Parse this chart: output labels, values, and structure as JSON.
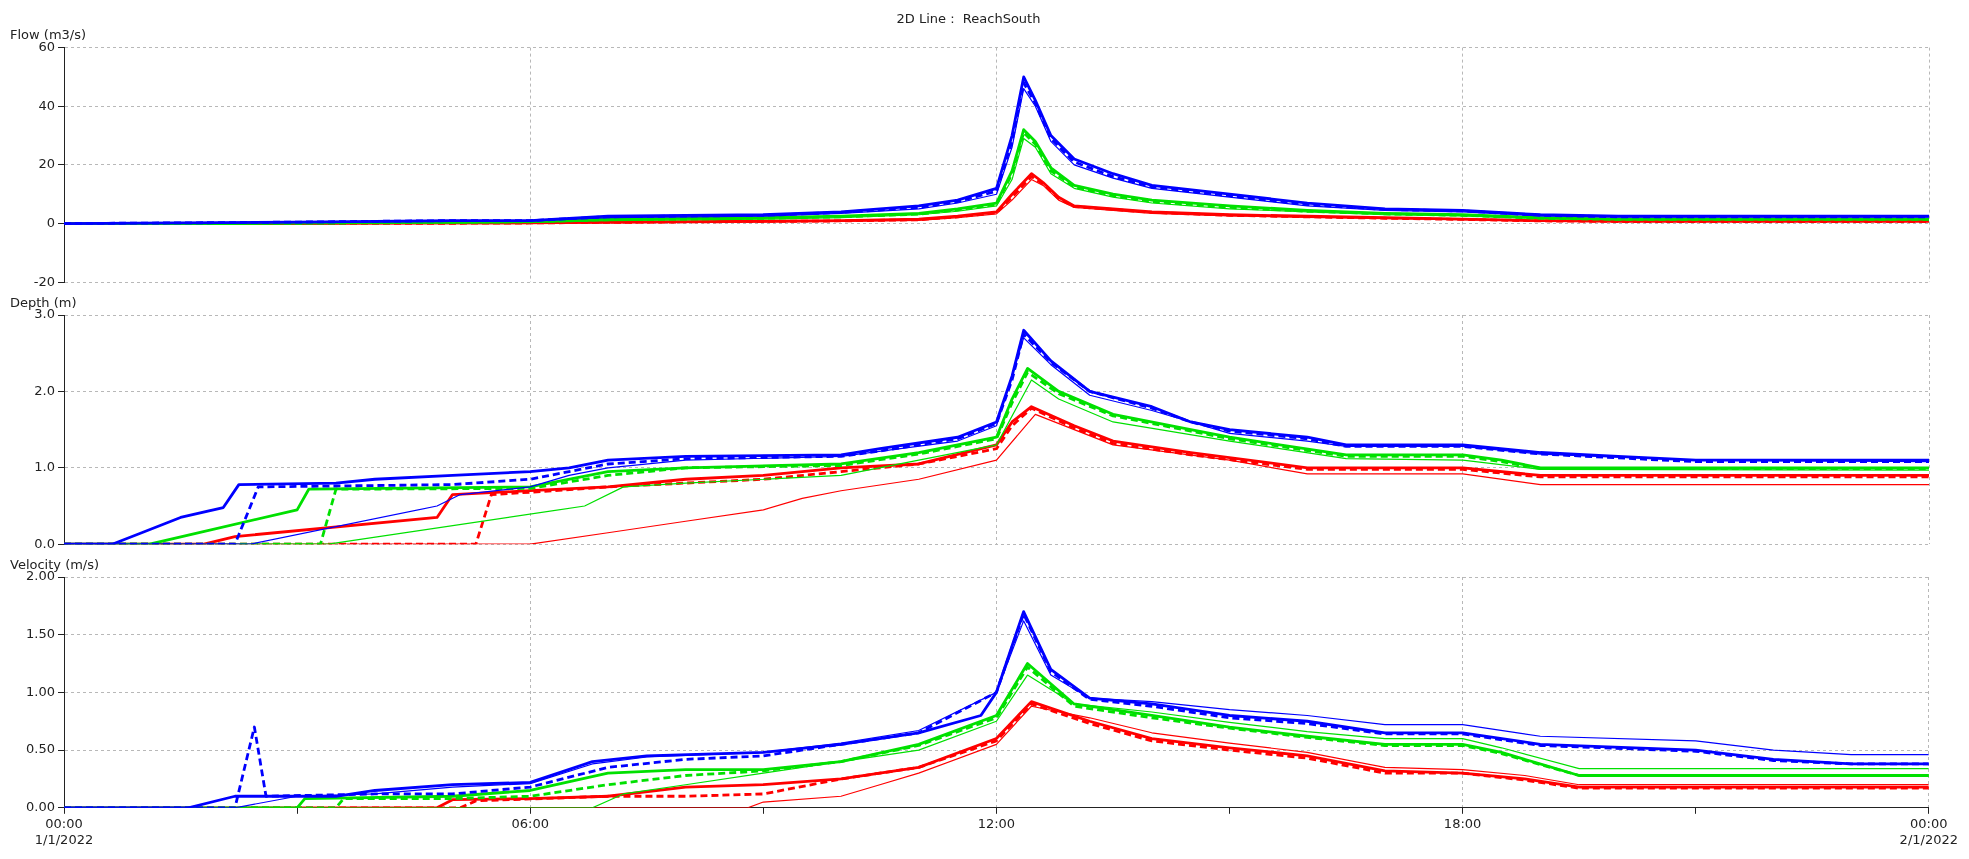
{
  "chart_data": [
    {
      "type": "line",
      "title": "2D Line :  ReachSouth",
      "ylabel": "Flow (m3/s)",
      "xlim": [
        0,
        24
      ],
      "xticks": [
        {
          "value": 0,
          "label": null
        },
        {
          "value": 6,
          "label": null
        },
        {
          "value": 12,
          "label": null
        },
        {
          "value": 18,
          "label": null
        },
        {
          "value": 24,
          "label": null
        }
      ],
      "ylim": [
        -20,
        60
      ],
      "yticks": [
        -20,
        0,
        20,
        40,
        60
      ],
      "grid": true,
      "tick_labels": "y",
      "series": [
        {
          "color": "#0000ff",
          "line_style": "solid",
          "x": [
            0,
            2,
            3,
            5,
            6,
            7,
            9,
            10,
            11,
            11.5,
            12,
            12.2,
            12.35,
            12.5,
            12.7,
            13,
            13.5,
            14,
            15,
            16,
            17,
            18,
            19,
            20,
            24
          ],
          "values": [
            0,
            0.3,
            0.5,
            1,
            1,
            2.5,
            3,
            4,
            6,
            8,
            12,
            30,
            50,
            42,
            30,
            22,
            17,
            13,
            10,
            7,
            5,
            4.5,
            3,
            2.5,
            2.5
          ]
        },
        {
          "color": "#0000ff",
          "line_style": "dashed",
          "x": [
            0,
            2,
            3,
            5,
            6,
            7,
            9,
            10,
            11,
            11.5,
            12,
            12.2,
            12.35,
            12.5,
            12.7,
            13,
            13.5,
            14,
            15,
            16,
            17,
            18,
            19,
            20,
            24
          ],
          "values": [
            0,
            0.3,
            0.5,
            1,
            1,
            2.3,
            2.8,
            3.8,
            5.5,
            7.5,
            11,
            28,
            48,
            41,
            29,
            21,
            16,
            12.5,
            9.5,
            6.5,
            4.8,
            4.3,
            2.8,
            2.3,
            2.3
          ]
        },
        {
          "color": "#0000ff",
          "line_style": "solid",
          "x": [
            0,
            2,
            3,
            5,
            6,
            7,
            9,
            10,
            11,
            11.5,
            12,
            12.2,
            12.35,
            12.5,
            12.7,
            13,
            13.5,
            14,
            15,
            16,
            17,
            18,
            19,
            20,
            24
          ],
          "values": [
            0,
            0.2,
            0.4,
            0.8,
            0.9,
            2,
            2.5,
            3.5,
            5,
            7,
            10,
            26,
            46,
            40,
            28,
            20,
            15.5,
            12,
            9,
            6,
            4.5,
            4,
            2.6,
            2.2,
            2.2
          ]
        },
        {
          "color": "#00e000",
          "line_style": "solid",
          "x": [
            0,
            2,
            3,
            5,
            6,
            7,
            9,
            10,
            11,
            11.5,
            12,
            12.2,
            12.35,
            12.5,
            12.7,
            13,
            13.5,
            14,
            15,
            16,
            17,
            18,
            19,
            20,
            24
          ],
          "values": [
            0,
            0,
            0.2,
            0.5,
            0.7,
            1.5,
            2,
            2.5,
            3.5,
            5,
            7,
            18,
            32,
            28,
            19,
            13,
            10,
            8,
            6,
            4.5,
            3.5,
            3,
            2,
            1.5,
            1.5
          ]
        },
        {
          "color": "#00e000",
          "line_style": "dashed",
          "x": [
            0,
            2,
            3,
            5,
            6,
            7,
            9,
            10,
            11,
            11.5,
            12,
            12.2,
            12.35,
            12.5,
            12.7,
            13,
            13.5,
            14,
            15,
            16,
            17,
            18,
            19,
            20,
            24
          ],
          "values": [
            0,
            0,
            0.1,
            0.4,
            0.6,
            1.3,
            1.8,
            2.3,
            3.2,
            4.7,
            6.5,
            17,
            31,
            27,
            18,
            12.5,
            9.5,
            7.5,
            5.5,
            4.2,
            3.3,
            2.8,
            1.8,
            1.4,
            1.4
          ]
        },
        {
          "color": "#00e000",
          "line_style": "solid",
          "x": [
            0,
            2,
            3,
            5,
            6,
            7,
            9,
            10,
            11,
            11.5,
            12,
            12.2,
            12.35,
            12.5,
            12.7,
            13,
            13.5,
            14,
            15,
            16,
            17,
            18,
            19,
            20,
            24
          ],
          "values": [
            0,
            0,
            0,
            0.2,
            0.4,
            1,
            1.5,
            2,
            3,
            4.2,
            6,
            15,
            29,
            26,
            17,
            12,
            9,
            7,
            5,
            4,
            3,
            2.6,
            1.7,
            1.3,
            1.3
          ]
        },
        {
          "color": "#ff0000",
          "line_style": "solid",
          "x": [
            0,
            2,
            3,
            5,
            6,
            7,
            9,
            10,
            11,
            11.5,
            12,
            12.2,
            12.45,
            12.6,
            12.8,
            13,
            13.5,
            14,
            15,
            16,
            17,
            18,
            19,
            20,
            24
          ],
          "values": [
            0,
            0,
            0,
            0.2,
            0.3,
            0.5,
            0.8,
            1,
            1.5,
            2.5,
            4,
            10,
            17,
            14,
            9,
            6,
            5,
            4,
            3,
            2.5,
            2,
            1.5,
            1,
            0.8,
            0.8
          ]
        },
        {
          "color": "#ff0000",
          "line_style": "dashed",
          "x": [
            0,
            2,
            3,
            5,
            6,
            7,
            9,
            10,
            11,
            11.5,
            12,
            12.2,
            12.45,
            12.6,
            12.8,
            13,
            13.5,
            14,
            15,
            16,
            17,
            18,
            19,
            20,
            24
          ],
          "values": [
            0,
            0,
            0,
            0.1,
            0.2,
            0.4,
            0.7,
            0.9,
            1.3,
            2.3,
            3.7,
            9,
            16,
            13.5,
            8.5,
            5.8,
            4.8,
            3.8,
            2.8,
            2.3,
            1.8,
            1.4,
            0.9,
            0.7,
            0.7
          ]
        },
        {
          "color": "#ff0000",
          "line_style": "solid",
          "x": [
            0,
            2,
            3,
            5,
            6,
            7,
            9,
            10,
            11,
            11.5,
            12,
            12.2,
            12.45,
            12.6,
            12.8,
            13,
            13.5,
            14,
            15,
            16,
            17,
            18,
            19,
            20,
            24
          ],
          "values": [
            0,
            0,
            0,
            0,
            0,
            0.2,
            0.5,
            0.7,
            1.1,
            2,
            3.3,
            8,
            15,
            13,
            8,
            5.5,
            4.5,
            3.5,
            2.6,
            2.1,
            1.7,
            1.3,
            0.8,
            0.6,
            0.6
          ]
        }
      ]
    },
    {
      "type": "line",
      "ylabel": "Depth (m)",
      "xlim": [
        0,
        24
      ],
      "xticks": [
        {
          "value": 0,
          "label": null
        },
        {
          "value": 6,
          "label": null
        },
        {
          "value": 12,
          "label": null
        },
        {
          "value": 18,
          "label": null
        },
        {
          "value": 24,
          "label": null
        }
      ],
      "ylim": [
        0,
        3
      ],
      "yticks": [
        {
          "value": 0,
          "label": "0.0"
        },
        {
          "value": 1,
          "label": "1.0"
        },
        {
          "value": 2,
          "label": "2.0"
        },
        {
          "value": 3,
          "label": "3.0"
        }
      ],
      "grid": true,
      "tick_labels": "y",
      "series": [
        {
          "color": "#0000ff",
          "line_style": "solid",
          "x": [
            0,
            0.62,
            1,
            1.5,
            2.05,
            2.25,
            3.5,
            4,
            5,
            6,
            6.5,
            7,
            8,
            10,
            10.5,
            11.5,
            12,
            12.2,
            12.35,
            12.7,
            13.2,
            14,
            14.5,
            15,
            16,
            16.5,
            18,
            19,
            20,
            21,
            24
          ],
          "values": [
            0,
            0,
            0.15,
            0.35,
            0.48,
            0.78,
            0.8,
            0.85,
            0.9,
            0.95,
            1.0,
            1.1,
            1.15,
            1.17,
            1.25,
            1.4,
            1.6,
            2.2,
            2.8,
            2.4,
            2.0,
            1.8,
            1.6,
            1.5,
            1.4,
            1.3,
            1.3,
            1.2,
            1.15,
            1.1,
            1.1
          ]
        },
        {
          "color": "#0000ff",
          "line_style": "dashed",
          "x": [
            0,
            2.2,
            2.5,
            5,
            6,
            7,
            8,
            10,
            10.5,
            11.5,
            12,
            12.2,
            12.35,
            12.7,
            13.2,
            14,
            14.5,
            15,
            16,
            16.5,
            18,
            19,
            20,
            21,
            24
          ],
          "values": [
            0,
            0,
            0.75,
            0.78,
            0.85,
            1.05,
            1.12,
            1.15,
            1.22,
            1.38,
            1.58,
            2.15,
            2.75,
            2.38,
            2.0,
            1.78,
            1.6,
            1.48,
            1.38,
            1.28,
            1.28,
            1.18,
            1.13,
            1.08,
            1.08
          ]
        },
        {
          "color": "#0000ff",
          "line_style": "solid",
          "x": [
            0,
            2.4,
            4.8,
            5.1,
            6,
            6.5,
            7,
            8,
            10,
            11.5,
            12,
            12.35,
            12.7,
            13.2,
            14,
            15,
            16,
            16.5,
            18,
            19,
            21,
            24
          ],
          "values": [
            0,
            0,
            0.5,
            0.65,
            0.75,
            0.9,
            1.0,
            1.1,
            1.15,
            1.35,
            1.55,
            2.7,
            2.35,
            1.95,
            1.75,
            1.45,
            1.35,
            1.28,
            1.28,
            1.18,
            1.1,
            1.08
          ]
        },
        {
          "color": "#00e000",
          "line_style": "solid",
          "x": [
            0,
            1.1,
            3,
            3.15,
            6,
            7,
            8,
            10,
            11,
            12,
            12.2,
            12.4,
            12.8,
            13.5,
            14.5,
            15,
            16.5,
            18,
            18.5,
            19,
            24
          ],
          "values": [
            0,
            0,
            0.45,
            0.72,
            0.75,
            0.95,
            1.0,
            1.05,
            1.2,
            1.4,
            1.9,
            2.3,
            2.0,
            1.7,
            1.5,
            1.4,
            1.17,
            1.17,
            1.1,
            1.0,
            1.0
          ]
        },
        {
          "color": "#00e000",
          "line_style": "dashed",
          "x": [
            0,
            3.3,
            3.5,
            6,
            7,
            8,
            10,
            11,
            12,
            12.2,
            12.4,
            12.8,
            13.5,
            14.5,
            15,
            16.5,
            18,
            18.5,
            19,
            24
          ],
          "values": [
            0,
            0,
            0.72,
            0.73,
            0.9,
            1.0,
            1.03,
            1.18,
            1.38,
            1.85,
            2.25,
            1.97,
            1.68,
            1.48,
            1.38,
            1.15,
            1.15,
            1.08,
            0.99,
            0.99
          ]
        },
        {
          "color": "#00e000",
          "line_style": "solid",
          "x": [
            0,
            3.4,
            6.7,
            7.2,
            8,
            10,
            11,
            12,
            12.45,
            12.8,
            13.5,
            15,
            16.5,
            18,
            19,
            24
          ],
          "values": [
            0,
            0,
            0.5,
            0.75,
            0.8,
            0.9,
            1.1,
            1.3,
            2.15,
            1.9,
            1.6,
            1.35,
            1.12,
            1.1,
            0.98,
            0.97
          ]
        },
        {
          "color": "#ff0000",
          "line_style": "solid",
          "x": [
            0,
            1.8,
            2.2,
            4.8,
            5.0,
            6,
            7,
            8,
            9,
            10,
            11,
            12,
            12.2,
            12.45,
            13,
            13.5,
            14.5,
            16,
            18,
            19,
            24
          ],
          "values": [
            0,
            0,
            0.1,
            0.35,
            0.65,
            0.7,
            0.75,
            0.85,
            0.9,
            1.0,
            1.05,
            1.3,
            1.6,
            1.8,
            1.55,
            1.35,
            1.2,
            1.0,
            1.0,
            0.9,
            0.9
          ]
        },
        {
          "color": "#ff0000",
          "line_style": "dashed",
          "x": [
            0,
            5.3,
            5.5,
            6,
            7,
            8,
            9,
            10,
            11,
            12,
            12.2,
            12.45,
            13,
            13.5,
            14.5,
            16,
            18,
            19,
            24
          ],
          "values": [
            0,
            0,
            0.65,
            0.68,
            0.75,
            0.8,
            0.85,
            0.95,
            1.05,
            1.25,
            1.55,
            1.78,
            1.52,
            1.32,
            1.17,
            0.98,
            0.98,
            0.88,
            0.88
          ]
        },
        {
          "color": "#ff0000",
          "line_style": "solid",
          "x": [
            0,
            6,
            7,
            8,
            9,
            9.5,
            10,
            11,
            12,
            12.5,
            13,
            13.5,
            15,
            16,
            18,
            19,
            24
          ],
          "values": [
            0,
            0,
            0.15,
            0.3,
            0.45,
            0.6,
            0.7,
            0.85,
            1.1,
            1.7,
            1.5,
            1.3,
            1.1,
            0.92,
            0.92,
            0.78,
            0.78
          ]
        }
      ]
    },
    {
      "type": "line",
      "ylabel": "Velocity (m/s)",
      "xlim": [
        0,
        24
      ],
      "xticks": [
        {
          "value": 0,
          "label": "00:00\n1/1/2022"
        },
        {
          "value": 3,
          "label": null
        },
        {
          "value": 6,
          "label": "06:00"
        },
        {
          "value": 9,
          "label": null
        },
        {
          "value": 12,
          "label": "12:00"
        },
        {
          "value": 15,
          "label": null
        },
        {
          "value": 18,
          "label": "18:00"
        },
        {
          "value": 21,
          "label": null
        },
        {
          "value": 24,
          "label": "00:00\n2/1/2022"
        }
      ],
      "ylim": [
        0,
        2
      ],
      "yticks": [
        {
          "value": 0,
          "label": "0.00"
        },
        {
          "value": 0.5,
          "label": "0.50"
        },
        {
          "value": 1,
          "label": "1.00"
        },
        {
          "value": 1.5,
          "label": "1.50"
        },
        {
          "value": 2,
          "label": "2.00"
        }
      ],
      "grid": true,
      "series": [
        {
          "color": "#0000ff",
          "line_style": "solid",
          "x": [
            0,
            1.6,
            2.2,
            3.5,
            4,
            5,
            6,
            6.8,
            7.5,
            9,
            10,
            11,
            11.8,
            12,
            12.35,
            12.7,
            13.2,
            14,
            15,
            16,
            17,
            18,
            19,
            21,
            22,
            23,
            24
          ],
          "values": [
            0,
            0,
            0.1,
            0.1,
            0.15,
            0.2,
            0.22,
            0.4,
            0.45,
            0.48,
            0.55,
            0.65,
            0.8,
            1.0,
            1.7,
            1.2,
            0.95,
            0.9,
            0.8,
            0.75,
            0.65,
            0.65,
            0.55,
            0.5,
            0.42,
            0.38,
            0.38
          ]
        },
        {
          "color": "#0000ff",
          "line_style": "dashed",
          "x": [
            0,
            2.2,
            2.45,
            2.6,
            4,
            5,
            6,
            7,
            8,
            9,
            10,
            11,
            12,
            12.35,
            12.7,
            13.2,
            14,
            15,
            16,
            17,
            18,
            19,
            21,
            22,
            23,
            24
          ],
          "values": [
            0,
            0,
            0.7,
            0.1,
            0.12,
            0.12,
            0.18,
            0.35,
            0.42,
            0.45,
            0.55,
            0.65,
            1.0,
            1.68,
            1.18,
            0.94,
            0.88,
            0.78,
            0.73,
            0.64,
            0.64,
            0.54,
            0.49,
            0.41,
            0.38,
            0.38
          ]
        },
        {
          "color": "#0000ff",
          "line_style": "solid",
          "x": [
            0,
            2.2,
            3,
            4,
            5,
            6,
            6.8,
            7.5,
            9,
            10,
            11,
            12,
            12.35,
            12.7,
            13.2,
            14,
            15,
            16,
            17,
            18,
            19,
            21,
            22,
            23,
            24
          ],
          "values": [
            0,
            0,
            0.1,
            0.12,
            0.18,
            0.21,
            0.38,
            0.44,
            0.48,
            0.56,
            0.67,
            1.0,
            1.62,
            1.15,
            0.95,
            0.92,
            0.85,
            0.8,
            0.72,
            0.72,
            0.62,
            0.58,
            0.5,
            0.46,
            0.46
          ]
        },
        {
          "color": "#00e000",
          "line_style": "solid",
          "x": [
            0,
            3,
            3.1,
            5,
            6,
            7,
            8,
            9,
            10,
            11,
            12,
            12.4,
            13,
            14,
            15,
            16,
            17,
            18,
            18.5,
            19.5,
            24
          ],
          "values": [
            0,
            0,
            0.08,
            0.1,
            0.15,
            0.3,
            0.33,
            0.33,
            0.4,
            0.55,
            0.8,
            1.25,
            0.9,
            0.8,
            0.7,
            0.62,
            0.55,
            0.55,
            0.48,
            0.28,
            0.28
          ]
        },
        {
          "color": "#00e000",
          "line_style": "dashed",
          "x": [
            0,
            3.5,
            3.6,
            5,
            6,
            7,
            8,
            9,
            10,
            11,
            12,
            12.4,
            13,
            14,
            15,
            16,
            17,
            18,
            18.5,
            19.5,
            24
          ],
          "values": [
            0,
            0,
            0.08,
            0.08,
            0.1,
            0.2,
            0.28,
            0.32,
            0.4,
            0.54,
            0.78,
            1.22,
            0.88,
            0.78,
            0.69,
            0.61,
            0.54,
            0.54,
            0.47,
            0.28,
            0.28
          ]
        },
        {
          "color": "#00e000",
          "line_style": "solid",
          "x": [
            0,
            6.8,
            7.2,
            8,
            9,
            10,
            11,
            12,
            12.4,
            13,
            14,
            15,
            16,
            17,
            18,
            18.5,
            19.5,
            24
          ],
          "values": [
            0,
            0,
            0.12,
            0.2,
            0.3,
            0.4,
            0.5,
            0.75,
            1.15,
            0.9,
            0.83,
            0.74,
            0.66,
            0.6,
            0.6,
            0.52,
            0.34,
            0.34
          ]
        },
        {
          "color": "#ff0000",
          "line_style": "solid",
          "x": [
            0,
            4.8,
            5,
            6,
            7,
            8,
            9,
            10,
            11,
            12,
            12.45,
            13.2,
            14,
            15,
            16,
            17,
            18,
            18.8,
            19.5,
            24
          ],
          "values": [
            0,
            0,
            0.07,
            0.08,
            0.1,
            0.18,
            0.2,
            0.25,
            0.35,
            0.6,
            0.92,
            0.75,
            0.6,
            0.52,
            0.45,
            0.32,
            0.3,
            0.25,
            0.18,
            0.18
          ]
        },
        {
          "color": "#ff0000",
          "line_style": "dashed",
          "x": [
            0,
            5.1,
            5.3,
            7,
            8,
            9,
            10,
            11,
            12,
            12.45,
            13.2,
            14,
            15,
            16,
            17,
            18,
            18.8,
            19.5,
            24
          ],
          "values": [
            0,
            0,
            0.06,
            0.1,
            0.1,
            0.12,
            0.25,
            0.35,
            0.58,
            0.9,
            0.73,
            0.58,
            0.5,
            0.43,
            0.3,
            0.3,
            0.24,
            0.17,
            0.17
          ]
        },
        {
          "color": "#ff0000",
          "line_style": "solid",
          "x": [
            0,
            8.8,
            9,
            10,
            10.5,
            11,
            12,
            12.45,
            13.2,
            14,
            15,
            16,
            17,
            18,
            18.8,
            19.5,
            24
          ],
          "values": [
            0,
            0,
            0.05,
            0.1,
            0.2,
            0.3,
            0.55,
            0.88,
            0.78,
            0.65,
            0.56,
            0.48,
            0.35,
            0.33,
            0.28,
            0.2,
            0.2
          ]
        }
      ]
    }
  ]
}
